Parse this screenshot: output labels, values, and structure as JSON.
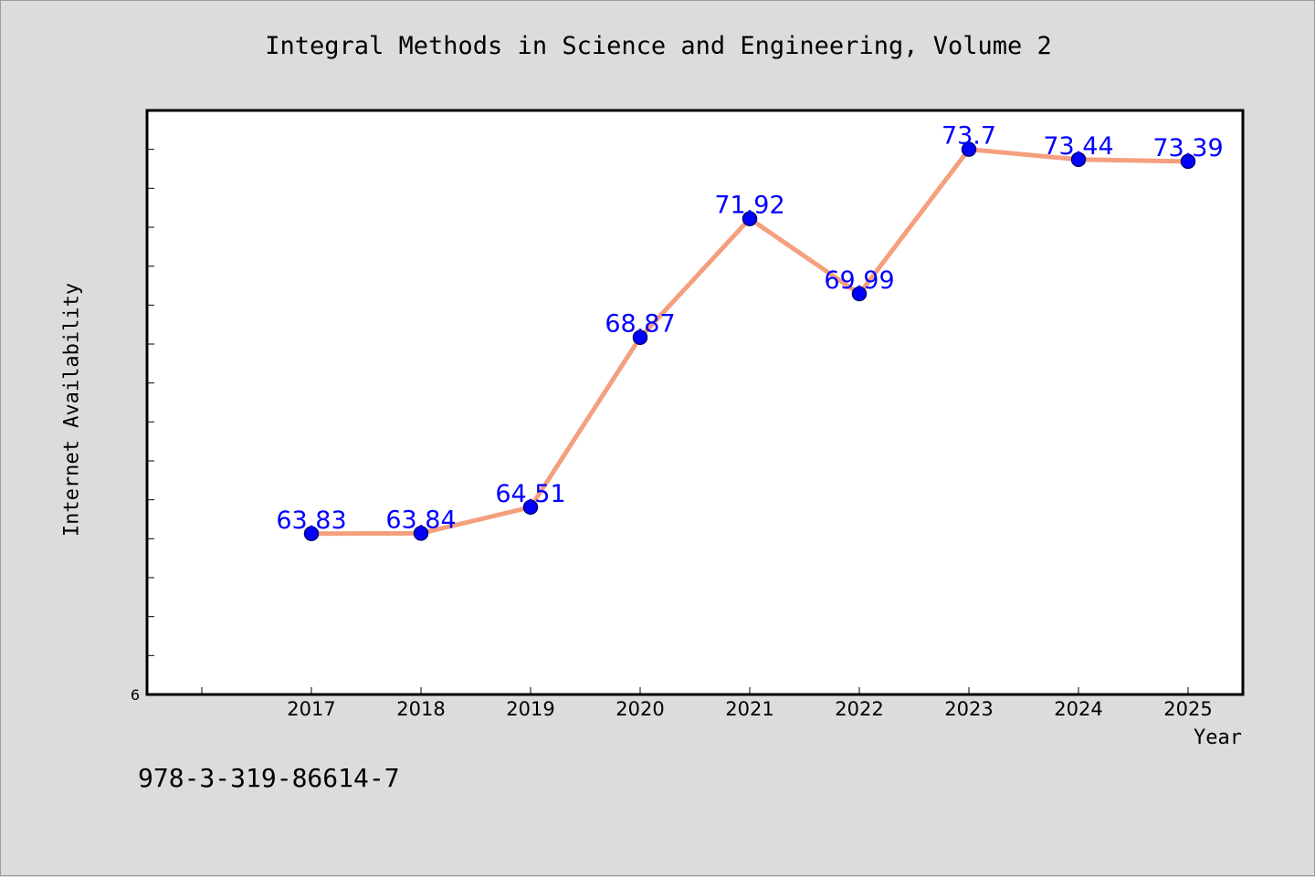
{
  "chart_data": {
    "type": "line",
    "title": "Integral Methods in Science and Engineering, Volume 2",
    "xlabel": "Year",
    "ylabel": "Internet Availability",
    "x": [
      "2017",
      "2018",
      "2019",
      "2020",
      "2021",
      "2022",
      "2023",
      "2024",
      "2025"
    ],
    "series": [
      {
        "values": [
          63.83,
          63.84,
          64.51,
          68.87,
          71.92,
          69.99,
          73.7,
          73.44,
          73.39
        ],
        "data_labels": [
          "63.83",
          "63.84",
          "64.51",
          "68.87",
          "71.92",
          "69.99",
          "73.7",
          "73.44",
          "73.39"
        ]
      }
    ],
    "ylim": [
      59.7,
      74.7
    ],
    "y_tick_labels": [
      {
        "value": 59.7,
        "label": "6"
      }
    ],
    "grid": false,
    "line_color": "#f4a07e",
    "marker_color": "#0000ff",
    "label_color": "#0000ff"
  },
  "footer": {
    "isbn": "978-3-319-86614-7"
  }
}
